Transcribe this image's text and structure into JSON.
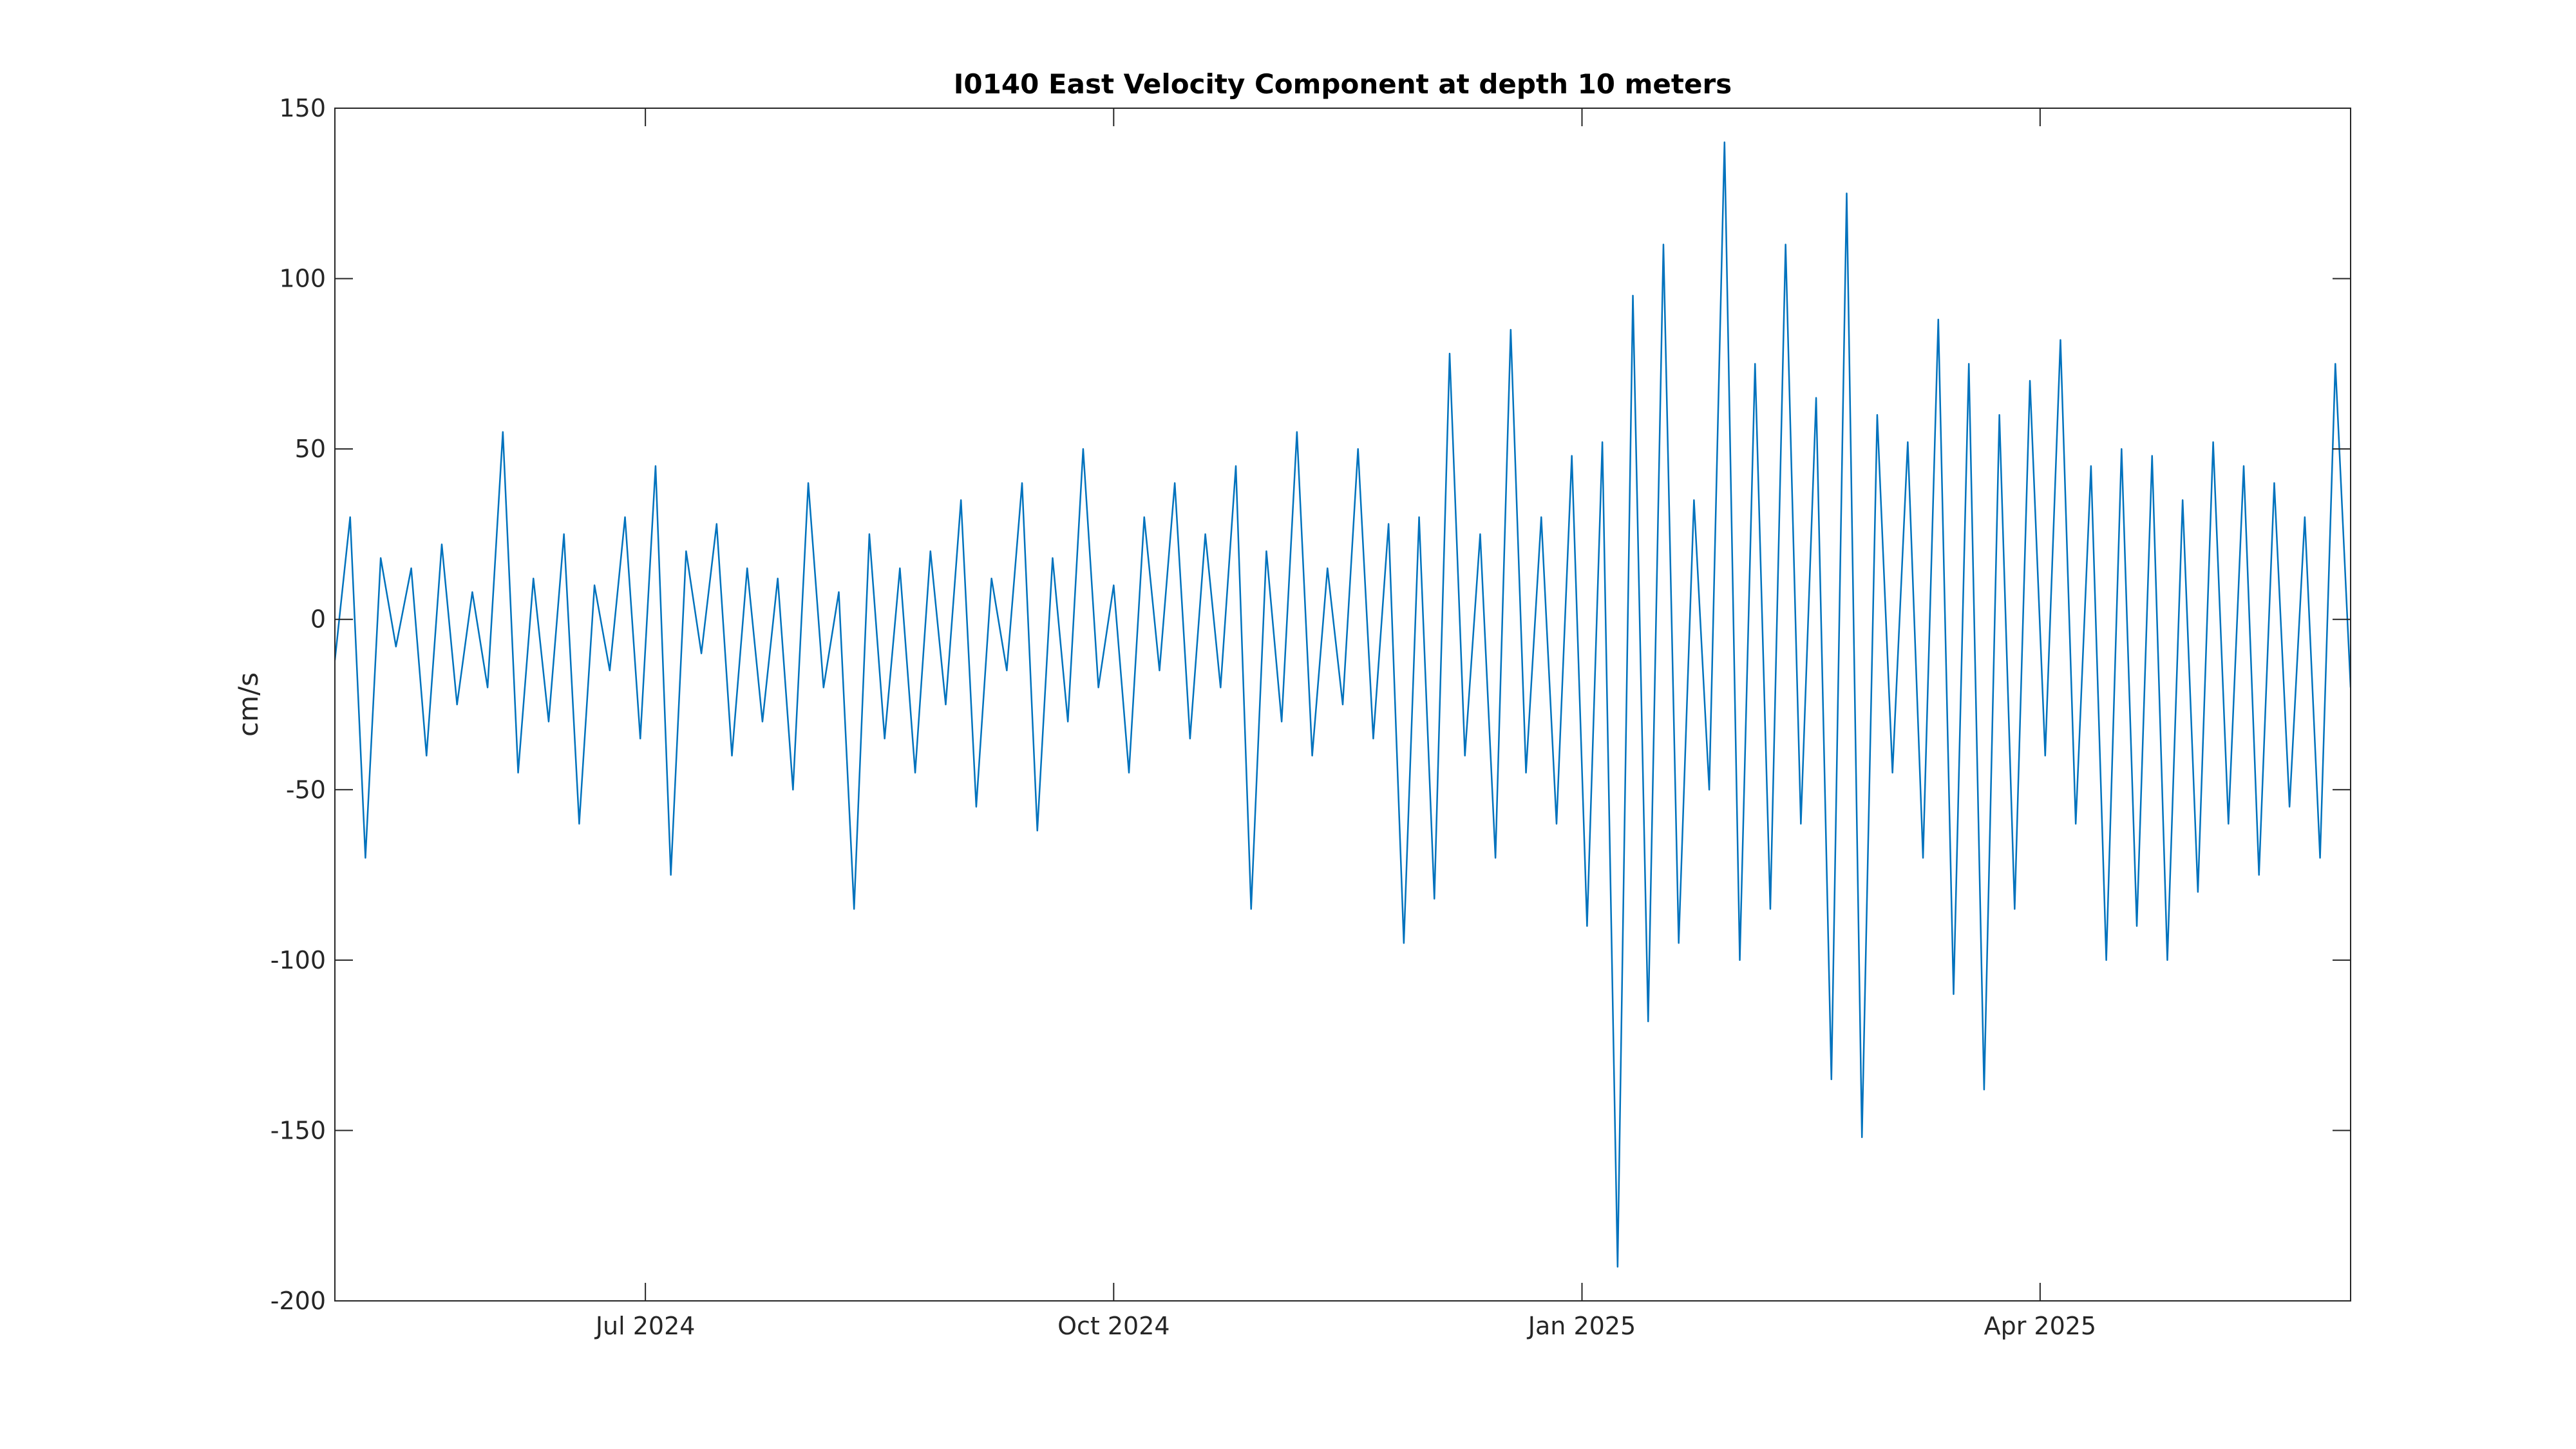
{
  "chart_data": {
    "type": "line",
    "title": "I0140 East Velocity Component at depth 10 meters",
    "xlabel": "",
    "ylabel": "cm/s",
    "xlim": [
      "2024-05-01",
      "2025-06-01"
    ],
    "ylim": [
      -200,
      150
    ],
    "x_ticks": [
      {
        "date": "2024-07-01",
        "label": "Jul 2024"
      },
      {
        "date": "2024-10-01",
        "label": "Oct 2024"
      },
      {
        "date": "2025-01-01",
        "label": "Jan 2025"
      },
      {
        "date": "2025-04-01",
        "label": "Apr 2025"
      }
    ],
    "y_ticks": [
      {
        "value": 150,
        "label": "150"
      },
      {
        "value": 100,
        "label": "100"
      },
      {
        "value": 50,
        "label": "50"
      },
      {
        "value": 0,
        "label": "0"
      },
      {
        "value": -50,
        "label": "-50"
      },
      {
        "value": -100,
        "label": "-100"
      },
      {
        "value": -150,
        "label": "-150"
      },
      {
        "value": -200,
        "label": "-200"
      }
    ],
    "grid": false,
    "legend": "none",
    "series_color": "#0072BD",
    "axis_color": "#262626",
    "series": [
      {
        "name": "",
        "x": [
          "2024-05-01",
          "2024-05-04",
          "2024-05-07",
          "2024-05-10",
          "2024-05-13",
          "2024-05-16",
          "2024-05-19",
          "2024-05-22",
          "2024-05-25",
          "2024-05-28",
          "2024-05-31",
          "2024-06-03",
          "2024-06-06",
          "2024-06-09",
          "2024-06-12",
          "2024-06-15",
          "2024-06-18",
          "2024-06-21",
          "2024-06-24",
          "2024-06-27",
          "2024-06-30",
          "2024-07-03",
          "2024-07-06",
          "2024-07-09",
          "2024-07-12",
          "2024-07-15",
          "2024-07-18",
          "2024-07-21",
          "2024-07-24",
          "2024-07-27",
          "2024-07-30",
          "2024-08-02",
          "2024-08-05",
          "2024-08-08",
          "2024-08-11",
          "2024-08-14",
          "2024-08-17",
          "2024-08-20",
          "2024-08-23",
          "2024-08-26",
          "2024-08-29",
          "2024-09-01",
          "2024-09-04",
          "2024-09-07",
          "2024-09-10",
          "2024-09-13",
          "2024-09-16",
          "2024-09-19",
          "2024-09-22",
          "2024-09-25",
          "2024-09-28",
          "2024-10-01",
          "2024-10-04",
          "2024-10-07",
          "2024-10-10",
          "2024-10-13",
          "2024-10-16",
          "2024-10-19",
          "2024-10-22",
          "2024-10-25",
          "2024-10-28",
          "2024-10-31",
          "2024-11-03",
          "2024-11-06",
          "2024-11-09",
          "2024-11-12",
          "2024-11-15",
          "2024-11-18",
          "2024-11-21",
          "2024-11-24",
          "2024-11-27",
          "2024-11-30",
          "2024-12-03",
          "2024-12-06",
          "2024-12-09",
          "2024-12-12",
          "2024-12-15",
          "2024-12-18",
          "2024-12-21",
          "2024-12-24",
          "2024-12-27",
          "2024-12-30",
          "2025-01-02",
          "2025-01-05",
          "2025-01-08",
          "2025-01-11",
          "2025-01-14",
          "2025-01-17",
          "2025-01-20",
          "2025-01-23",
          "2025-01-26",
          "2025-01-29",
          "2025-02-01",
          "2025-02-04",
          "2025-02-07",
          "2025-02-10",
          "2025-02-13",
          "2025-02-16",
          "2025-02-19",
          "2025-02-22",
          "2025-02-25",
          "2025-02-28",
          "2025-03-03",
          "2025-03-06",
          "2025-03-09",
          "2025-03-12",
          "2025-03-15",
          "2025-03-18",
          "2025-03-21",
          "2025-03-24",
          "2025-03-27",
          "2025-03-30",
          "2025-04-02",
          "2025-04-05",
          "2025-04-08",
          "2025-04-11",
          "2025-04-14",
          "2025-04-17",
          "2025-04-20",
          "2025-04-23",
          "2025-04-26",
          "2025-04-29",
          "2025-05-02",
          "2025-05-05",
          "2025-05-08",
          "2025-05-11",
          "2025-05-14",
          "2025-05-17",
          "2025-05-20",
          "2025-05-23",
          "2025-05-26",
          "2025-05-29",
          "2025-06-01"
        ],
        "values": [
          -12,
          30,
          -70,
          18,
          -8,
          15,
          -40,
          22,
          -25,
          8,
          -20,
          55,
          -45,
          12,
          -30,
          25,
          -60,
          10,
          -15,
          30,
          -35,
          45,
          -75,
          20,
          -10,
          28,
          -40,
          15,
          -30,
          12,
          -50,
          40,
          -20,
          8,
          -85,
          25,
          -35,
          15,
          -45,
          20,
          -25,
          35,
          -55,
          12,
          -15,
          40,
          -62,
          18,
          -30,
          50,
          -20,
          10,
          -45,
          30,
          -15,
          40,
          -35,
          25,
          -20,
          45,
          -85,
          20,
          -30,
          55,
          -40,
          15,
          -25,
          50,
          -35,
          28,
          -95,
          30,
          -82,
          78,
          -40,
          25,
          -70,
          85,
          -45,
          30,
          -60,
          48,
          -90,
          52,
          -190,
          95,
          -118,
          110,
          -95,
          35,
          -50,
          140,
          -100,
          75,
          -85,
          110,
          -60,
          65,
          -135,
          125,
          -152,
          60,
          -45,
          52,
          -70,
          88,
          -110,
          75,
          -138,
          60,
          -85,
          70,
          -40,
          82,
          -60,
          45,
          -100,
          50,
          -90,
          48,
          -100,
          35,
          -80,
          52,
          -60,
          45,
          -75,
          40,
          -55,
          30,
          -70,
          75,
          -20
        ]
      }
    ]
  }
}
